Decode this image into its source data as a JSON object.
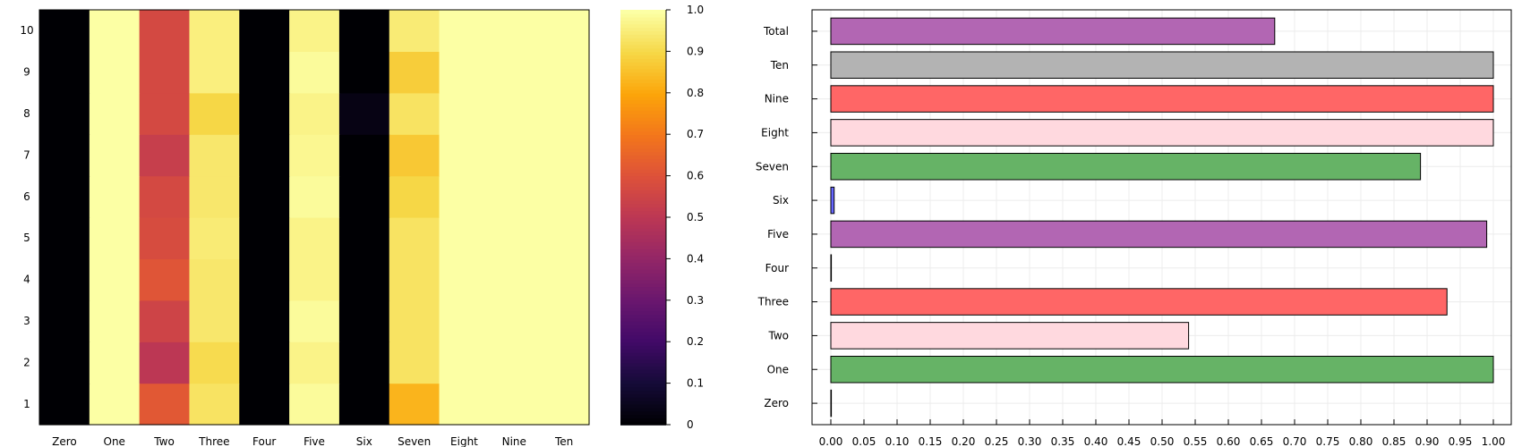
{
  "chart_data": [
    {
      "type": "heatmap",
      "title": "",
      "xlabel": "",
      "ylabel": "",
      "x_categories": [
        "Zero",
        "One",
        "Two",
        "Three",
        "Four",
        "Five",
        "Six",
        "Seven",
        "Eight",
        "Nine",
        "Ten"
      ],
      "y_categories": [
        "1",
        "2",
        "3",
        "4",
        "5",
        "6",
        "7",
        "8",
        "9",
        "10"
      ],
      "values_by_row_from_1_to_10": [
        [
          0.0,
          1.0,
          0.62,
          0.93,
          0.0,
          0.99,
          0.0,
          0.83,
          1.0,
          1.0,
          1.0
        ],
        [
          0.0,
          1.0,
          0.5,
          0.91,
          0.0,
          0.97,
          0.0,
          0.93,
          1.0,
          1.0,
          1.0
        ],
        [
          0.0,
          1.0,
          0.55,
          0.94,
          0.0,
          0.99,
          0.0,
          0.93,
          1.0,
          1.0,
          1.0
        ],
        [
          0.0,
          1.0,
          0.61,
          0.94,
          0.0,
          0.97,
          0.0,
          0.93,
          1.0,
          1.0,
          1.0
        ],
        [
          0.0,
          1.0,
          0.58,
          0.95,
          0.0,
          0.97,
          0.0,
          0.93,
          1.0,
          1.0,
          1.0
        ],
        [
          0.0,
          1.0,
          0.57,
          0.94,
          0.0,
          0.99,
          0.0,
          0.9,
          1.0,
          1.0,
          1.0
        ],
        [
          0.0,
          1.0,
          0.53,
          0.94,
          0.0,
          0.98,
          0.0,
          0.87,
          1.0,
          1.0,
          1.0
        ],
        [
          0.0,
          1.0,
          0.57,
          0.9,
          0.0,
          0.97,
          0.03,
          0.93,
          1.0,
          1.0,
          1.0
        ],
        [
          0.0,
          1.0,
          0.57,
          0.96,
          0.0,
          0.99,
          0.0,
          0.88,
          1.0,
          1.0,
          1.0
        ],
        [
          0.0,
          1.0,
          0.57,
          0.96,
          0.0,
          0.97,
          0.0,
          0.95,
          1.0,
          1.0,
          1.0
        ]
      ],
      "colorbar": {
        "colormap": "inferno",
        "range": [
          0,
          1
        ],
        "ticks": [
          "0",
          "0.1",
          "0.2",
          "0.3",
          "0.4",
          "0.5",
          "0.6",
          "0.7",
          "0.8",
          "0.9",
          "1.0"
        ]
      }
    },
    {
      "type": "bar",
      "orientation": "horizontal",
      "title": "",
      "xlabel": "",
      "ylabel": "",
      "categories": [
        "Zero",
        "One",
        "Two",
        "Three",
        "Four",
        "Five",
        "Six",
        "Seven",
        "Eight",
        "Nine",
        "Ten",
        "Total"
      ],
      "values": [
        0.0,
        1.0,
        0.54,
        0.93,
        0.0,
        0.99,
        0.005,
        0.89,
        1.0,
        1.0,
        1.0,
        0.67
      ],
      "colors": [
        "#ffffff",
        "#66b366",
        "#ffd9df",
        "#ff6666",
        "#ffffff",
        "#b266b3",
        "#6666ff",
        "#66b366",
        "#ffd9df",
        "#ff6666",
        "#b3b3b3",
        "#b266b3"
      ],
      "xlim": [
        0.0,
        1.0
      ],
      "x_ticks": [
        "0.00",
        "0.05",
        "0.10",
        "0.15",
        "0.20",
        "0.25",
        "0.30",
        "0.35",
        "0.40",
        "0.45",
        "0.50",
        "0.55",
        "0.60",
        "0.65",
        "0.70",
        "0.75",
        "0.80",
        "0.85",
        "0.90",
        "0.95",
        "1.00"
      ],
      "grid": true,
      "legend": "none"
    }
  ]
}
